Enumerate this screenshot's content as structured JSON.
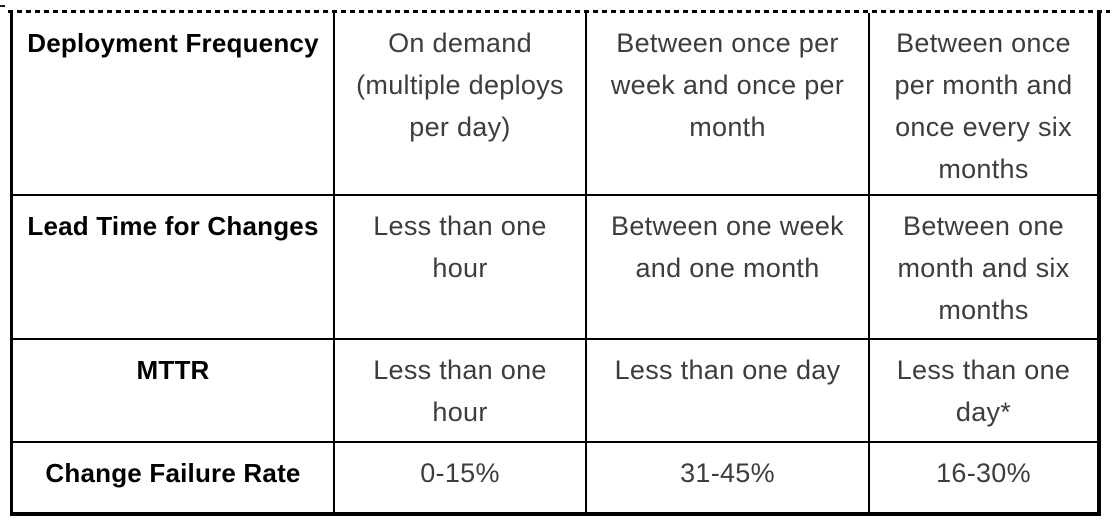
{
  "colors": {
    "border": "#000000",
    "header_text": "#000000",
    "body_text": "#3d3d3d",
    "background": "#ffffff"
  },
  "table": {
    "rows": [
      {
        "metric": "Deployment Frequency",
        "values": [
          "On demand\n(multiple deploys\nper day)",
          "Between once per\nweek and once per\nmonth",
          "Between once\nper month and\nonce every six\nmonths"
        ]
      },
      {
        "metric": "Lead Time for Changes",
        "values": [
          "Less than one hour",
          "Between one week\nand one month",
          "Between one\nmonth and six\nmonths"
        ]
      },
      {
        "metric": "MTTR",
        "values": [
          "Less than one hour",
          "Less than one day",
          "Less than one\nday*"
        ]
      },
      {
        "metric": "Change Failure Rate",
        "values": [
          "0-15%",
          "31-45%",
          "16-30%"
        ]
      }
    ]
  }
}
